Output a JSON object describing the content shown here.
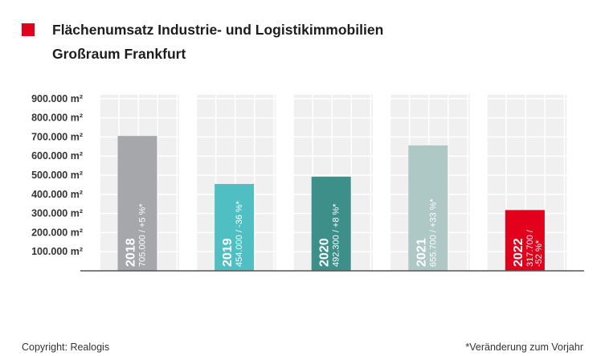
{
  "header": {
    "title_line1": "Flächenumsatz Industrie- und Logistikimmobilien",
    "title_line2": "Großraum Frankfurt",
    "marker_color": "#e2001a"
  },
  "footer": {
    "copyright": "Copyright: Realogis",
    "note": "*Veränderung zum Vorjahr"
  },
  "chart_data": {
    "type": "bar",
    "categories": [
      "2018",
      "2019",
      "2020",
      "2021",
      "2022"
    ],
    "values": [
      705000,
      454000,
      492300,
      655700,
      317700
    ],
    "bar_labels": [
      [
        "705.000 / +5 %*"
      ],
      [
        "454.000 / -36 %*"
      ],
      [
        "492.300 / +8 %*"
      ],
      [
        "655.700 / +33 %*"
      ],
      [
        "317.700 /",
        "-52 %*"
      ]
    ],
    "colors": [
      "#a6a7ab",
      "#4fbfc3",
      "#3d8f8a",
      "#adc8c5",
      "#e2001a"
    ],
    "yticks": [
      100000,
      200000,
      300000,
      400000,
      500000,
      600000,
      700000,
      800000,
      900000
    ],
    "ytick_labels": [
      "100.000 m²",
      "200.000 m²",
      "300.000 m²",
      "400.000 m²",
      "500.000 m²",
      "600.000 m²",
      "700.000 m²",
      "800.000 m²",
      "900.000 m²"
    ],
    "ylim": [
      0,
      900000
    ],
    "grid": true,
    "legend": "none"
  }
}
